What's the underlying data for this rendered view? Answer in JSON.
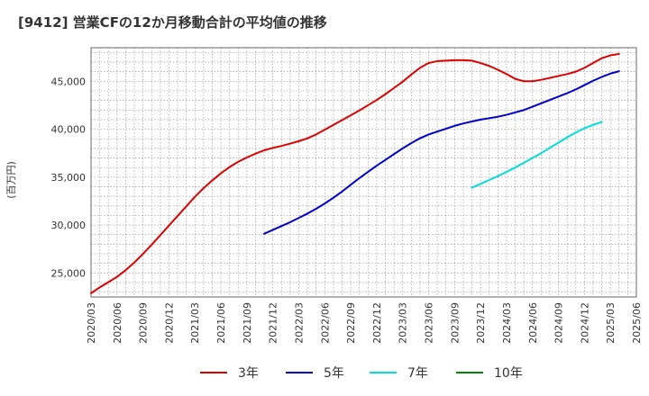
{
  "chart_data": {
    "type": "line",
    "title": "[9412]  営業CFの12か月移動合計の平均値の推移",
    "ylabel": "(百万円)",
    "xlabel": "",
    "ylim": [
      22500,
      48500
    ],
    "yticks": [
      25000,
      30000,
      35000,
      40000,
      45000
    ],
    "ytick_labels": [
      "25,000",
      "30,000",
      "35,000",
      "40,000",
      "45,000"
    ],
    "xticks": [
      "2020/03",
      "2020/06",
      "2020/09",
      "2020/12",
      "2021/03",
      "2021/06",
      "2021/09",
      "2021/12",
      "2022/03",
      "2022/06",
      "2022/09",
      "2022/12",
      "2023/03",
      "2023/06",
      "2023/09",
      "2023/12",
      "2024/03",
      "2024/06",
      "2024/09",
      "2024/12",
      "2025/03",
      "2025/06"
    ],
    "grid": true,
    "legend_position": "bottom",
    "series": [
      {
        "name": "3年",
        "color": "#dd0000",
        "start": "2020/03",
        "values": [
          22900,
          23500,
          24050,
          24600,
          25300,
          26100,
          27000,
          27950,
          28950,
          29950,
          30950,
          31950,
          32950,
          33850,
          34650,
          35400,
          36050,
          36600,
          37050,
          37450,
          37800,
          38050,
          38250,
          38500,
          38750,
          39050,
          39450,
          39950,
          40450,
          40950,
          41450,
          41950,
          42500,
          43050,
          43650,
          44300,
          44950,
          45700,
          46400,
          46900,
          47100,
          47150,
          47200,
          47200,
          47150,
          46900,
          46600,
          46200,
          45750,
          45250,
          45000,
          45000,
          45150,
          45350,
          45550,
          45750,
          46000,
          46400,
          46900,
          47400,
          47700,
          47850
        ]
      },
      {
        "name": "5年",
        "color": "#0000cc",
        "start": "2021/11",
        "values": [
          29100,
          29500,
          29900,
          30300,
          30750,
          31200,
          31700,
          32250,
          32850,
          33500,
          34200,
          34900,
          35550,
          36200,
          36800,
          37400,
          38000,
          38550,
          39050,
          39450,
          39750,
          40050,
          40350,
          40600,
          40800,
          41000,
          41150,
          41300,
          41500,
          41750,
          42000,
          42350,
          42700,
          43050,
          43400,
          43750,
          44150,
          44600,
          45050,
          45450,
          45800,
          46050
        ]
      },
      {
        "name": "7年",
        "color": "#00dddd",
        "start": "2023/11",
        "values": [
          33900,
          34300,
          34700,
          35100,
          35550,
          36000,
          36500,
          37000,
          37500,
          38050,
          38600,
          39150,
          39650,
          40100,
          40450,
          40750
        ]
      },
      {
        "name": "10年",
        "color": "#008800",
        "start": "",
        "values": []
      }
    ]
  }
}
